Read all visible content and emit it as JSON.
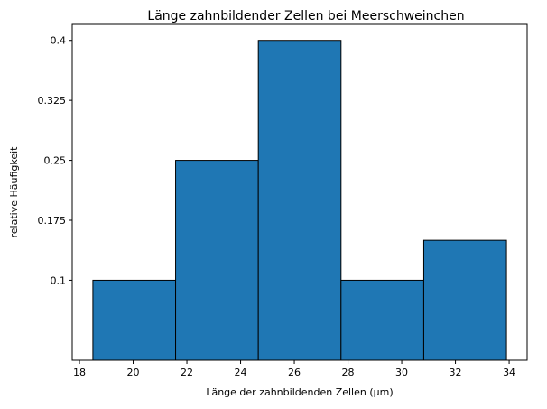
{
  "chart_data": {
    "type": "bar",
    "title": "Länge zahnbildender Zellen bei Meerschweinchen",
    "xlabel": "Länge der zahnbildenden Zellen (µm)",
    "ylabel": "relative Häufigkeit",
    "bins": [
      {
        "start": 18.5,
        "end": 21.58,
        "value": 0.1
      },
      {
        "start": 21.58,
        "end": 24.66,
        "value": 0.25
      },
      {
        "start": 24.66,
        "end": 27.74,
        "value": 0.4
      },
      {
        "start": 27.74,
        "end": 30.82,
        "value": 0.1
      },
      {
        "start": 30.82,
        "end": 33.9,
        "value": 0.15
      }
    ],
    "xticks": [
      18,
      20,
      22,
      24,
      26,
      28,
      30,
      32,
      34
    ],
    "xtick_labels": [
      "18",
      "20",
      "22",
      "24",
      "26",
      "28",
      "30",
      "32",
      "34"
    ],
    "yticks": [
      0.1,
      0.175,
      0.25,
      0.325,
      0.4
    ],
    "ytick_labels": [
      "0.1",
      "0.175",
      "0.25",
      "0.325",
      "0.4"
    ],
    "xlim": [
      17.73,
      34.67
    ],
    "ylim": [
      0,
      0.42
    ],
    "grid": false,
    "bar_color": "#1f77b4",
    "edge_color": "#000000"
  }
}
